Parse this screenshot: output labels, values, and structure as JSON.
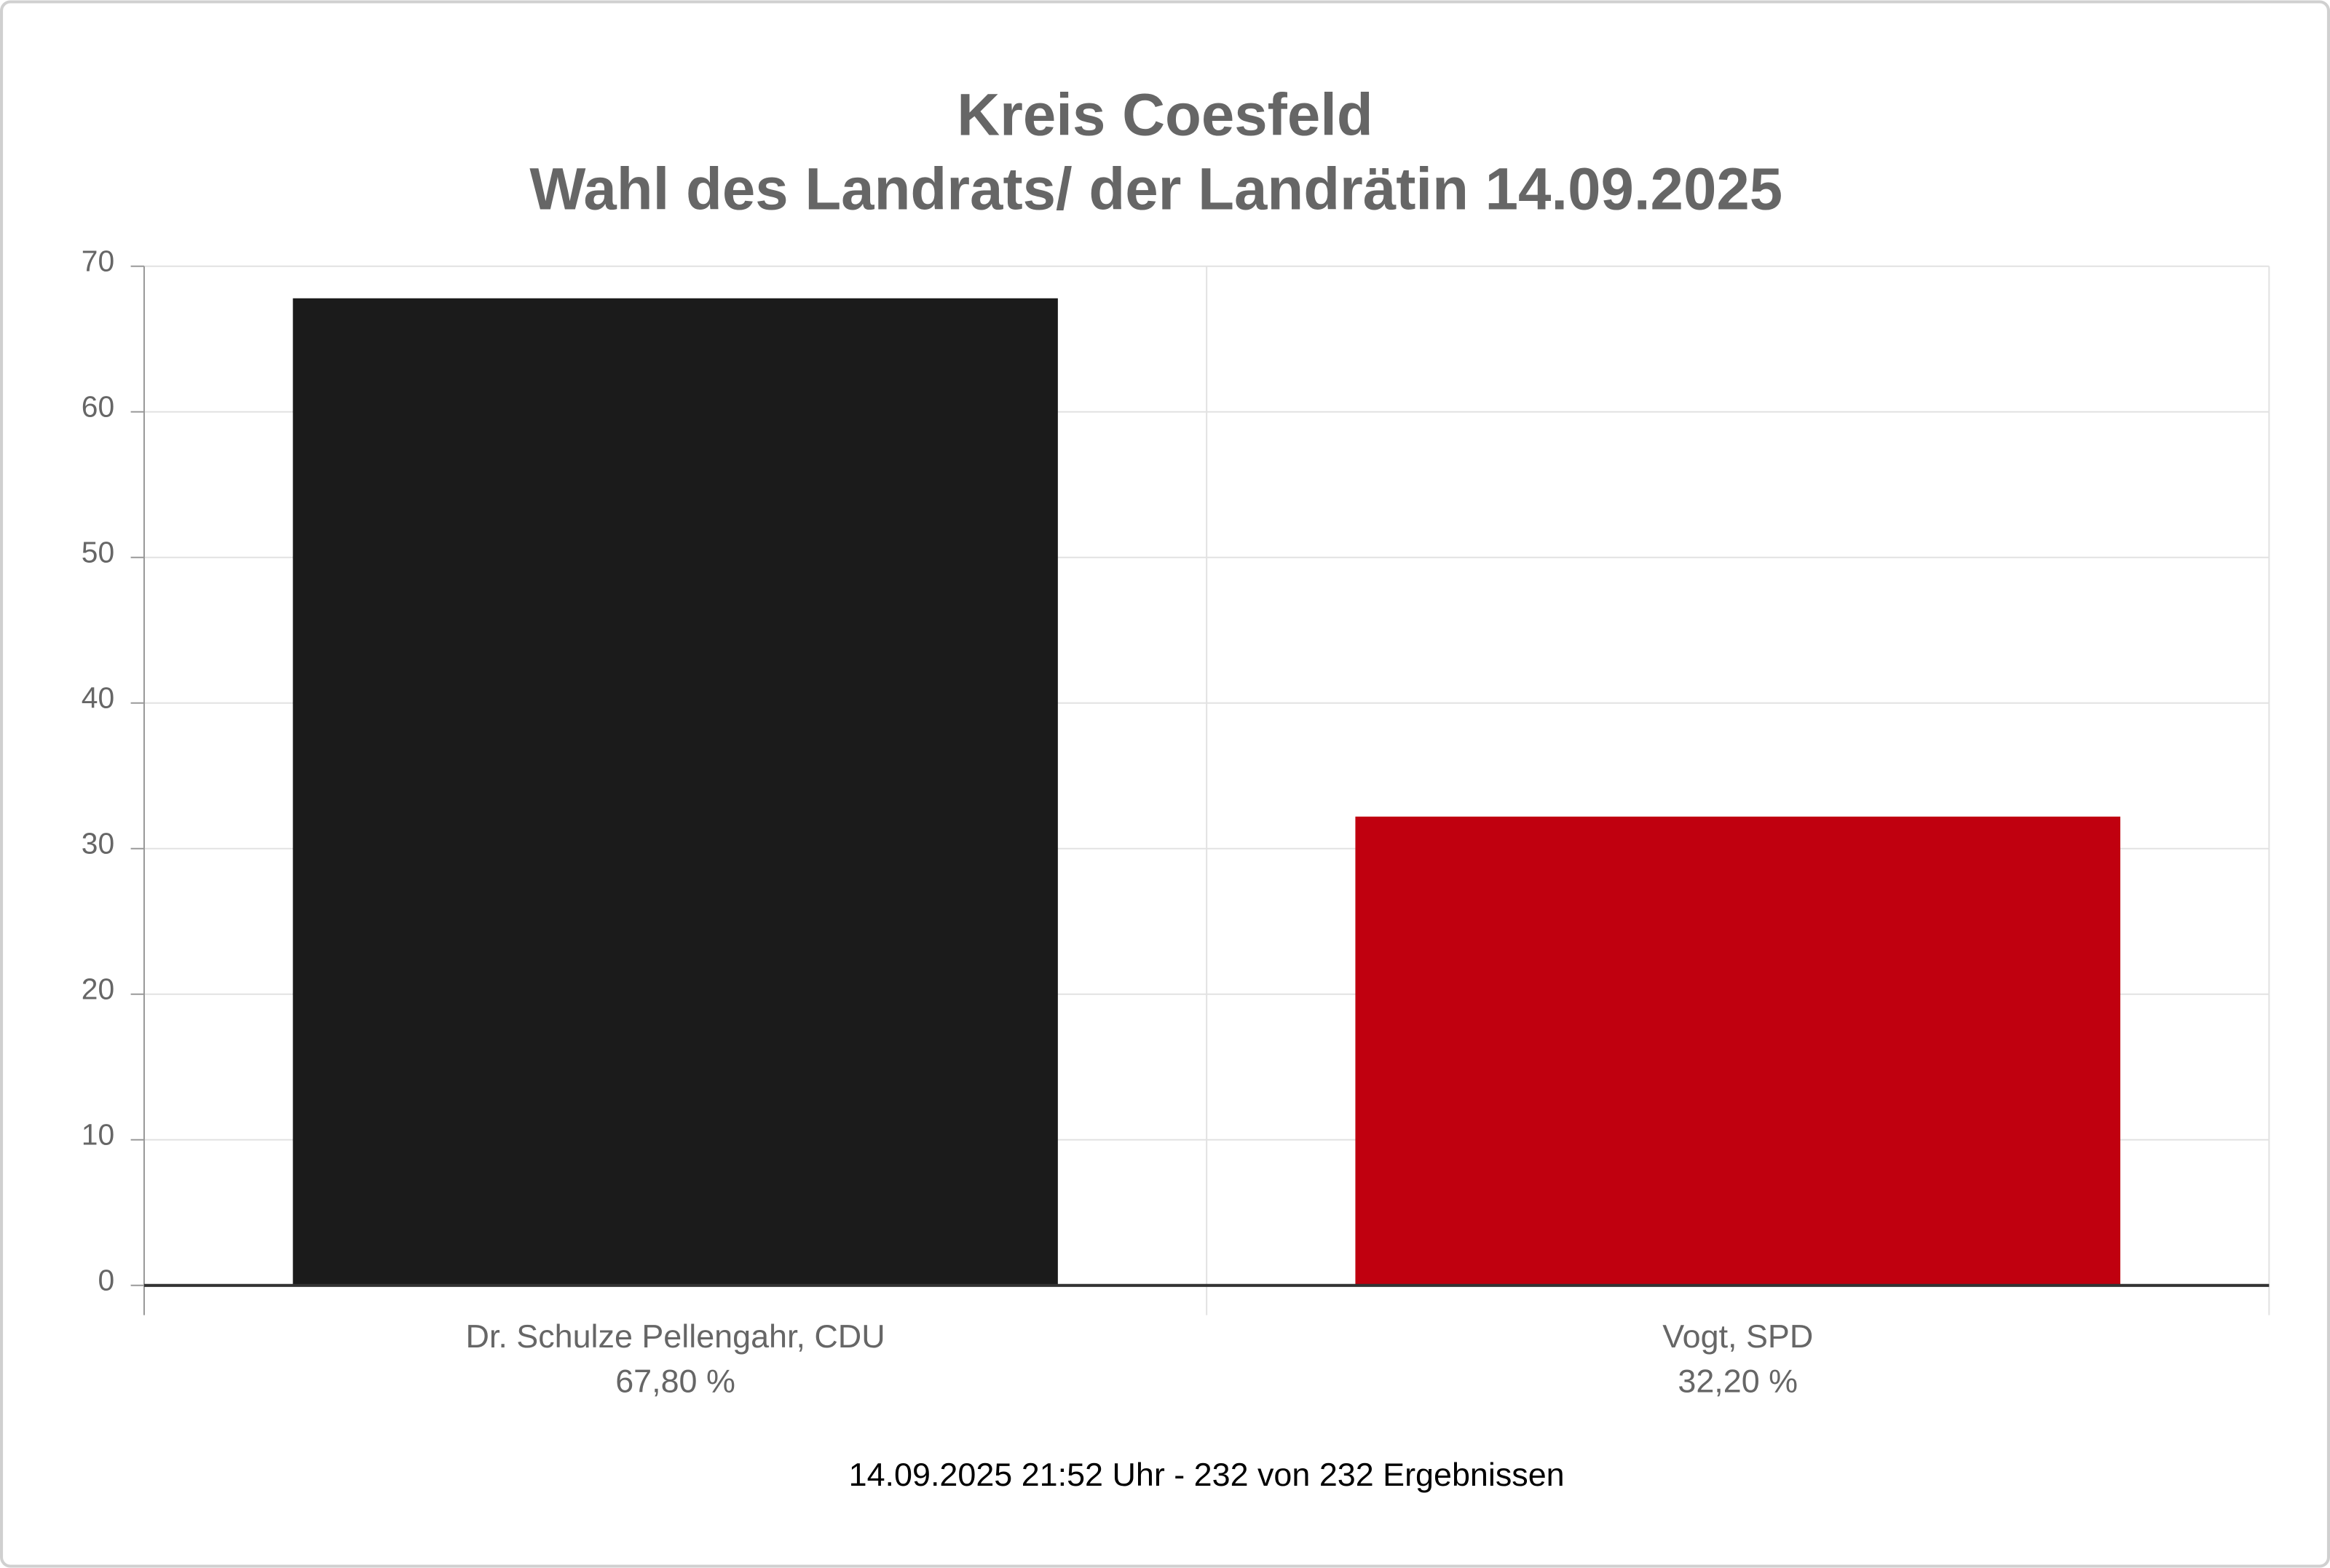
{
  "chart_data": {
    "type": "bar",
    "title": "Kreis Coesfeld",
    "subtitle": "Wahl des Landrats/ der Landrätin 14.09.2025",
    "categories": [
      "Dr. Schulze Pellengahr, CDU",
      "Vogt, SPD"
    ],
    "values": [
      67.8,
      32.2
    ],
    "value_labels": [
      "67,80 %",
      "32,20 %"
    ],
    "colors": [
      "#1b1b1b",
      "#c0000f"
    ],
    "ylim": [
      0,
      70
    ],
    "yticks": [
      0,
      10,
      20,
      30,
      40,
      50,
      60,
      70
    ],
    "grid": true,
    "footnote": "14.09.2025 21:52 Uhr - 232 von 232 Ergebnissen"
  }
}
